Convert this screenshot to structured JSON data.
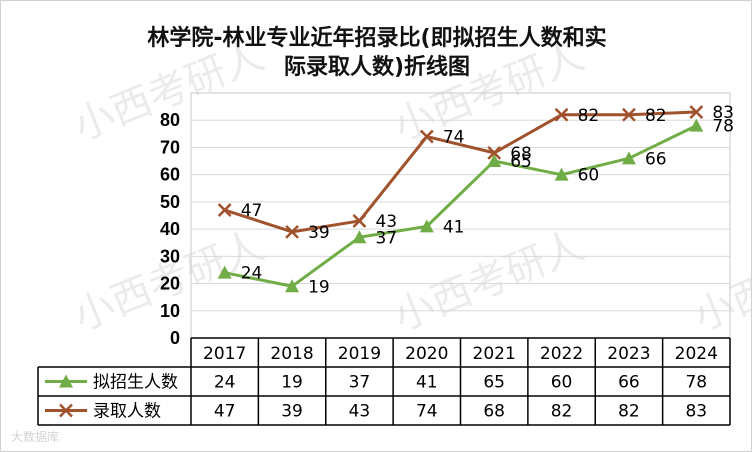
{
  "title": {
    "line1": "林学院-林业专业近年招录比(即拟招生人数和实",
    "line2": "际录取人数)折线图"
  },
  "watermark": {
    "text": "小西考研人",
    "small": "大数据库"
  },
  "chart_data": {
    "type": "line",
    "title": "林学院-林业专业近年招录比(即拟招生人数和实际录取人数)折线图",
    "categories": [
      "2017",
      "2018",
      "2019",
      "2020",
      "2021",
      "2022",
      "2023",
      "2024"
    ],
    "ylim": [
      0,
      90
    ],
    "yticks": [
      0,
      10,
      20,
      30,
      40,
      50,
      60,
      70,
      80
    ],
    "grid": true,
    "legend_placement": "data-table",
    "series": [
      {
        "name": "拟招生人数",
        "values": [
          24,
          19,
          37,
          41,
          65,
          60,
          66,
          78
        ],
        "color": "#70ad47",
        "marker": "triangle"
      },
      {
        "name": "录取人数",
        "values": [
          47,
          39,
          43,
          74,
          68,
          82,
          82,
          83
        ],
        "color": "#a0522d",
        "marker": "x"
      }
    ]
  }
}
